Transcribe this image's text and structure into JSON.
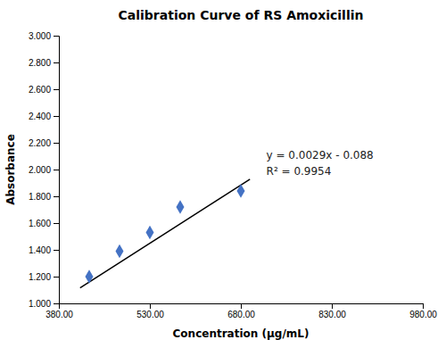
{
  "chart_data": {
    "type": "scatter",
    "title": "Calibration Curve of RS Amoxicillin",
    "xlabel": "Concentration (μg/mL)",
    "ylabel": "Absorbance",
    "series": [
      {
        "type": "line",
        "color": "#000000",
        "x": [
          415,
          695
        ],
        "values": [
          1.1155,
          1.9275
        ]
      },
      {
        "type": "scatter",
        "color": "#4472C4",
        "marker": "diamond",
        "x": [
          430,
          480,
          530,
          580,
          680
        ],
        "values": [
          1.2,
          1.39,
          1.53,
          1.72,
          1.84
        ]
      }
    ],
    "annotations": [
      "y = 0.0029x - 0.088",
      "R² = 0.9954"
    ],
    "xlim": [
      380,
      980
    ],
    "ylim": [
      1.0,
      3.0
    ],
    "xticks": [
      {
        "value": 380,
        "label": "380.00"
      },
      {
        "value": 530,
        "label": "530.00"
      },
      {
        "value": 680,
        "label": "680.00"
      },
      {
        "value": 830,
        "label": "830.00"
      },
      {
        "value": 980,
        "label": "980.00"
      }
    ],
    "yticks": [
      {
        "value": 1.0,
        "label": "1.000"
      },
      {
        "value": 1.2,
        "label": "1.200"
      },
      {
        "value": 1.4,
        "label": "1.400"
      },
      {
        "value": 1.6,
        "label": "1.600"
      },
      {
        "value": 1.8,
        "label": "1.800"
      },
      {
        "value": 2.0,
        "label": "2.000"
      },
      {
        "value": 2.2,
        "label": "2.200"
      },
      {
        "value": 2.4,
        "label": "2.400"
      },
      {
        "value": 2.6,
        "label": "2.600"
      },
      {
        "value": 2.8,
        "label": "2.800"
      },
      {
        "value": 3.0,
        "label": "3.000"
      }
    ],
    "grid": false
  }
}
